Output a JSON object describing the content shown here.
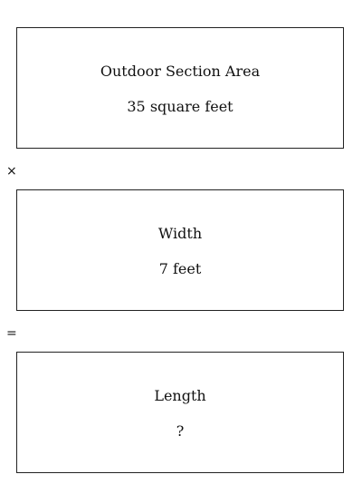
{
  "boxes": [
    {
      "label": "Outdoor Section Area",
      "value": "35 square feet"
    },
    {
      "label": "Width",
      "value": "7 feet"
    },
    {
      "label": "Length",
      "value": "?"
    }
  ],
  "operators": [
    "×",
    "="
  ]
}
